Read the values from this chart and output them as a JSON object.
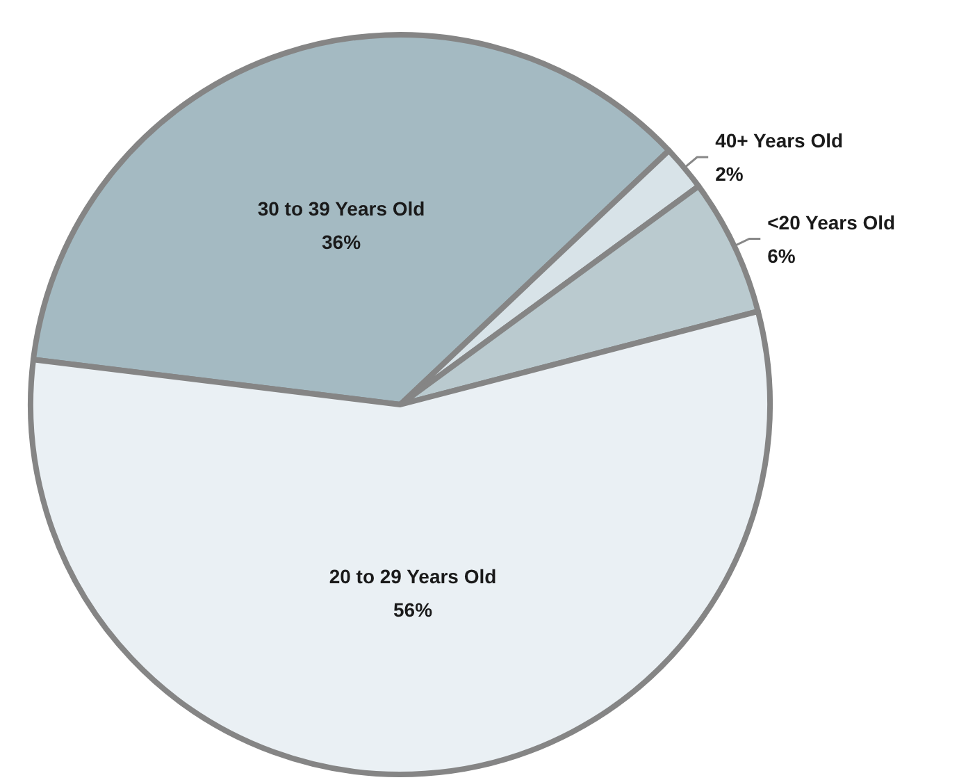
{
  "chart_data": {
    "type": "pie",
    "categories": [
      "30 to 39 Years Old",
      "40+ Years Old",
      "<20 Years Old",
      "20 to 29 Years Old"
    ],
    "values": [
      36,
      2,
      6,
      56
    ],
    "value_labels": [
      "36%",
      "2%",
      "6%",
      "56%"
    ],
    "colors": [
      "#a4bac2",
      "#d8e3e8",
      "#bacacf",
      "#eaf0f4"
    ]
  }
}
